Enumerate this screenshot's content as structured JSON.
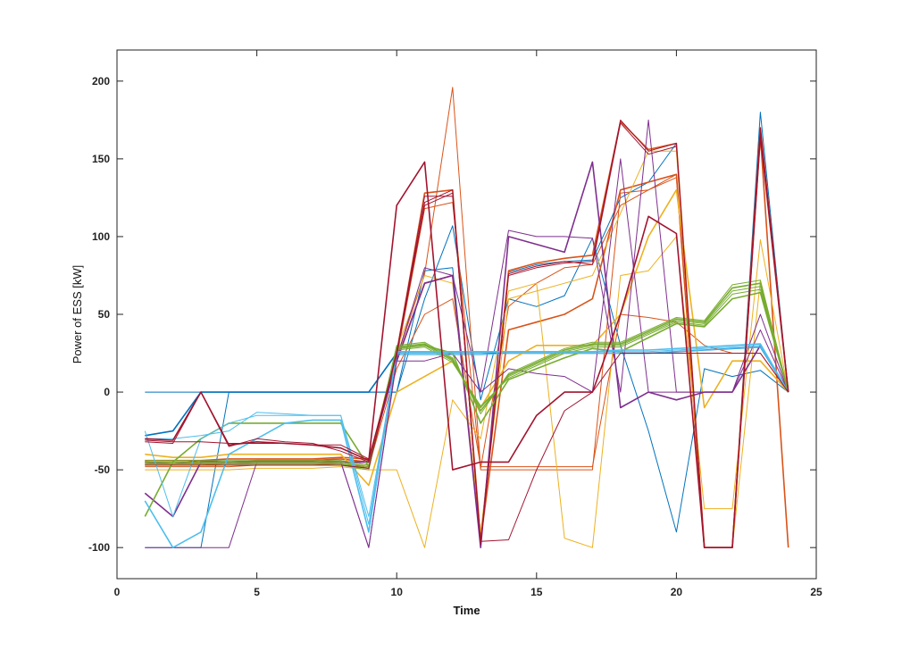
{
  "chart_data": {
    "type": "line",
    "title": "",
    "xlabel": "Time",
    "ylabel": "Power of ESS [kW]",
    "xlim": [
      0,
      25
    ],
    "ylim": [
      -120,
      220
    ],
    "xticks": [
      0,
      5,
      10,
      15,
      20,
      25
    ],
    "yticks": [
      -100,
      -50,
      0,
      50,
      100,
      150,
      200
    ],
    "grid": false,
    "legend": "none",
    "x": [
      1,
      2,
      3,
      4,
      5,
      6,
      7,
      8,
      9,
      10,
      11,
      12,
      13,
      14,
      15,
      16,
      17,
      18,
      19,
      20,
      21,
      22,
      23,
      24
    ],
    "series": [
      {
        "color": "#0072BD",
        "values": [
          -28,
          -25,
          0,
          0,
          0,
          0,
          0,
          0,
          0,
          25,
          25,
          25,
          25,
          25,
          25,
          25,
          25,
          25,
          25,
          26,
          27,
          28,
          29,
          0
        ]
      },
      {
        "color": "#0072BD",
        "values": [
          0,
          0,
          0,
          0,
          0,
          0,
          0,
          0,
          0,
          0,
          78,
          80,
          -97,
          77,
          82,
          84,
          85,
          125,
          135,
          160,
          -100,
          -100,
          180,
          0
        ]
      },
      {
        "color": "#0072BD",
        "values": [
          -100,
          -100,
          -100,
          0,
          0,
          0,
          0,
          0,
          0,
          0,
          60,
          107,
          -5,
          60,
          55,
          62,
          99,
          30,
          -25,
          -90,
          15,
          10,
          14,
          0
        ]
      },
      {
        "color": "#D95319",
        "values": [
          -45,
          -46,
          -45,
          -45,
          -44,
          -44,
          -44,
          -43,
          -45,
          25,
          128,
          130,
          -95,
          78,
          83,
          86,
          88,
          174,
          156,
          160,
          -100,
          -100,
          170,
          0
        ]
      },
      {
        "color": "#D95319",
        "values": [
          -47,
          -47,
          -47,
          -46,
          -46,
          -46,
          -46,
          -45,
          -48,
          22,
          76,
          196,
          -49,
          55,
          70,
          80,
          82,
          120,
          130,
          140,
          -100,
          -100,
          165,
          0
        ]
      },
      {
        "color": "#D95319",
        "values": [
          -46,
          -46,
          -46,
          -46,
          -45,
          -45,
          -45,
          -44,
          -47,
          22,
          118,
          122,
          -50,
          -50,
          -50,
          -50,
          -50,
          128,
          130,
          138,
          -100,
          -100,
          168,
          0
        ]
      },
      {
        "color": "#D95319",
        "values": [
          -44,
          -44,
          -44,
          -43,
          -43,
          -43,
          -43,
          -42,
          -43,
          20,
          70,
          75,
          -95,
          40,
          45,
          50,
          60,
          130,
          135,
          140,
          -100,
          -100,
          165,
          -100
        ]
      },
      {
        "color": "#D95319",
        "values": [
          -48,
          -48,
          -48,
          -48,
          -47,
          -47,
          -47,
          -46,
          -48,
          15,
          50,
          60,
          -48,
          -48,
          -48,
          -48,
          -48,
          50,
          48,
          45,
          30,
          25,
          25,
          0
        ]
      },
      {
        "color": "#EDB120",
        "values": [
          -50,
          -50,
          -50,
          -50,
          -49,
          -49,
          -49,
          -48,
          -50,
          -50,
          -100,
          -5,
          -30,
          65,
          70,
          -94,
          -100,
          75,
          78,
          100,
          -75,
          -75,
          98,
          0
        ]
      },
      {
        "color": "#EDB120",
        "values": [
          -40,
          -42,
          -42,
          -40,
          -40,
          -40,
          -40,
          -40,
          -60,
          0,
          10,
          20,
          -10,
          20,
          30,
          30,
          30,
          50,
          100,
          130,
          -10,
          20,
          20,
          0
        ]
      },
      {
        "color": "#EDB120",
        "values": [
          -45,
          -45,
          -45,
          -45,
          -45,
          -45,
          -45,
          -45,
          -45,
          28,
          75,
          70,
          -90,
          60,
          65,
          70,
          75,
          115,
          155,
          155,
          -100,
          -100,
          72,
          0
        ]
      },
      {
        "color": "#7E2F8E",
        "values": [
          -100,
          -100,
          -100,
          -100,
          -45,
          -45,
          -45,
          -45,
          -100,
          22,
          80,
          75,
          0,
          104,
          100,
          100,
          99,
          0,
          175,
          0,
          0,
          0,
          40,
          0
        ]
      },
      {
        "color": "#7E2F8E",
        "values": [
          -65,
          -80,
          -45,
          -45,
          -45,
          -45,
          -45,
          -45,
          -45,
          20,
          70,
          75,
          -100,
          100,
          95,
          90,
          148,
          -10,
          0,
          -5,
          0,
          0,
          30,
          0
        ]
      },
      {
        "color": "#7E2F8E",
        "values": [
          -45,
          -46,
          -44,
          -45,
          -45,
          -45,
          -45,
          -45,
          -100,
          20,
          20,
          25,
          0,
          15,
          12,
          10,
          0,
          150,
          0,
          0,
          0,
          0,
          50,
          0
        ]
      },
      {
        "color": "#77AC30",
        "values": [
          -45,
          -45,
          -45,
          -45,
          -45,
          -45,
          -45,
          -45,
          -48,
          28,
          30,
          20,
          -10,
          10,
          18,
          26,
          30,
          30,
          38,
          46,
          44,
          65,
          68,
          0
        ]
      },
      {
        "color": "#77AC30",
        "values": [
          -46,
          -46,
          -46,
          -46,
          -46,
          -46,
          -46,
          -46,
          -49,
          29,
          31,
          21,
          -12,
          11,
          19,
          27,
          31,
          31,
          39,
          47,
          45,
          67,
          70,
          0
        ]
      },
      {
        "color": "#77AC30",
        "values": [
          -47,
          -47,
          -47,
          -47,
          -47,
          -47,
          -47,
          -47,
          -50,
          30,
          32,
          22,
          -14,
          12,
          20,
          28,
          32,
          32,
          40,
          48,
          46,
          69,
          72,
          0
        ]
      },
      {
        "color": "#77AC30",
        "values": [
          -44,
          -44,
          -44,
          -44,
          -44,
          -44,
          -44,
          -44,
          -47,
          27,
          29,
          19,
          -9,
          9,
          17,
          25,
          29,
          29,
          37,
          45,
          43,
          63,
          66,
          0
        ]
      },
      {
        "color": "#77AC30",
        "values": [
          -80,
          -45,
          -30,
          -20,
          -20,
          -20,
          -20,
          -20,
          -48,
          28,
          30,
          25,
          -20,
          8,
          15,
          22,
          28,
          26,
          35,
          44,
          42,
          60,
          64,
          0
        ]
      },
      {
        "color": "#4DBEEE",
        "values": [
          -25,
          -80,
          -30,
          -20,
          -15,
          -15,
          -15,
          -15,
          -85,
          25,
          25,
          25,
          25,
          26,
          26,
          26,
          26,
          26,
          26,
          27,
          28,
          29,
          30,
          0
        ]
      },
      {
        "color": "#4DBEEE",
        "values": [
          -30,
          -30,
          -28,
          -25,
          -13,
          -14,
          -15,
          -15,
          -80,
          24,
          24,
          24,
          24,
          25,
          25,
          25,
          25,
          25,
          25,
          26,
          27,
          28,
          29,
          0
        ]
      },
      {
        "color": "#4DBEEE",
        "values": [
          -70,
          -100,
          -90,
          -40,
          -30,
          -20,
          -18,
          -18,
          -90,
          26,
          26,
          26,
          26,
          26,
          26,
          26,
          26,
          27,
          27,
          28,
          29,
          30,
          31,
          0
        ]
      },
      {
        "color": "#A2142F",
        "values": [
          -31,
          -32,
          -32,
          -33,
          -33,
          -33,
          -34,
          -34,
          -43,
          24,
          120,
          128,
          -98,
          75,
          80,
          83,
          84,
          175,
          155,
          160,
          -100,
          -100,
          170,
          0
        ]
      },
      {
        "color": "#A2142F",
        "values": [
          -32,
          -33,
          0,
          -35,
          -30,
          -32,
          -33,
          -38,
          -45,
          25,
          122,
          130,
          -96,
          76,
          81,
          84,
          82,
          173,
          153,
          158,
          -100,
          -100,
          168,
          0
        ]
      },
      {
        "color": "#A2142F",
        "values": [
          -30,
          -31,
          0,
          -34,
          -32,
          -33,
          -34,
          -36,
          -44,
          120,
          148,
          -50,
          -45,
          -45,
          -15,
          0,
          0,
          50,
          113,
          102,
          -100,
          -100,
          165,
          0
        ]
      },
      {
        "color": "#A2142F",
        "values": [
          -47,
          -47,
          -47,
          -47,
          -47,
          -47,
          -47,
          -47,
          -49,
          26,
          126,
          126,
          -96,
          -95,
          -50,
          -12,
          0,
          25,
          25,
          25,
          25,
          25,
          25,
          0
        ]
      }
    ]
  }
}
